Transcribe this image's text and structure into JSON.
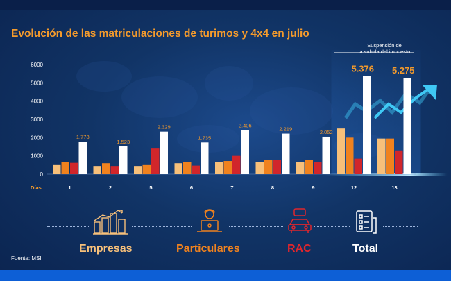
{
  "title": "Evolución de las matriculaciones de turimos y 4x4 en julio",
  "source": "Fuente: MSI",
  "annotation": "Suspensión de\nla subida del impuesto",
  "colors": {
    "empresas": "#f7c07a",
    "particulares": "#f0821e",
    "rac": "#d1262b",
    "total": "#ffffff",
    "title": "#f39a2c",
    "axis_text": "#ffffff",
    "arrow": "#3fc8f4"
  },
  "legend": [
    {
      "key": "empresas",
      "label": "Empresas",
      "icon": "city-growth-icon",
      "color": "#f7c07a"
    },
    {
      "key": "particulares",
      "label": "Particulares",
      "icon": "person-laptop-icon",
      "color": "#f0821e"
    },
    {
      "key": "rac",
      "label": "RAC",
      "icon": "rental-car-icon",
      "color": "#e0262c"
    },
    {
      "key": "total",
      "label": "Total",
      "icon": "checklist-icon",
      "color": "#ffffff"
    }
  ],
  "chart_data": {
    "type": "bar",
    "title": "Evolución de las matriculaciones de turimos y 4x4 en julio",
    "xlabel": "Días",
    "ylabel": "",
    "ylim": [
      0,
      6000
    ],
    "yticks": [
      "0",
      "1000",
      "2000",
      "3000",
      "4000",
      "5000",
      "6000"
    ],
    "categories": [
      "1",
      "2",
      "5",
      "6",
      "7",
      "8",
      "9",
      "12",
      "13"
    ],
    "series": [
      {
        "name": "Empresas",
        "values": [
          500,
          450,
          450,
          600,
          650,
          650,
          650,
          2500,
          1950
        ]
      },
      {
        "name": "Particulares",
        "values": [
          650,
          600,
          500,
          680,
          720,
          780,
          780,
          2000,
          1950
        ]
      },
      {
        "name": "RAC",
        "values": [
          620,
          450,
          1400,
          470,
          1000,
          780,
          650,
          850,
          1300
        ]
      },
      {
        "name": "Total",
        "values": [
          1778,
          1523,
          2329,
          1735,
          2406,
          2219,
          2052,
          5376,
          5275
        ]
      }
    ],
    "data_labels": [
      "1.778",
      "1.523",
      "2.329",
      "1.735",
      "2.406",
      "2.219",
      "2.052",
      "5.376",
      "5.275"
    ],
    "highlight_categories": [
      "12",
      "13"
    ],
    "grid": false
  }
}
